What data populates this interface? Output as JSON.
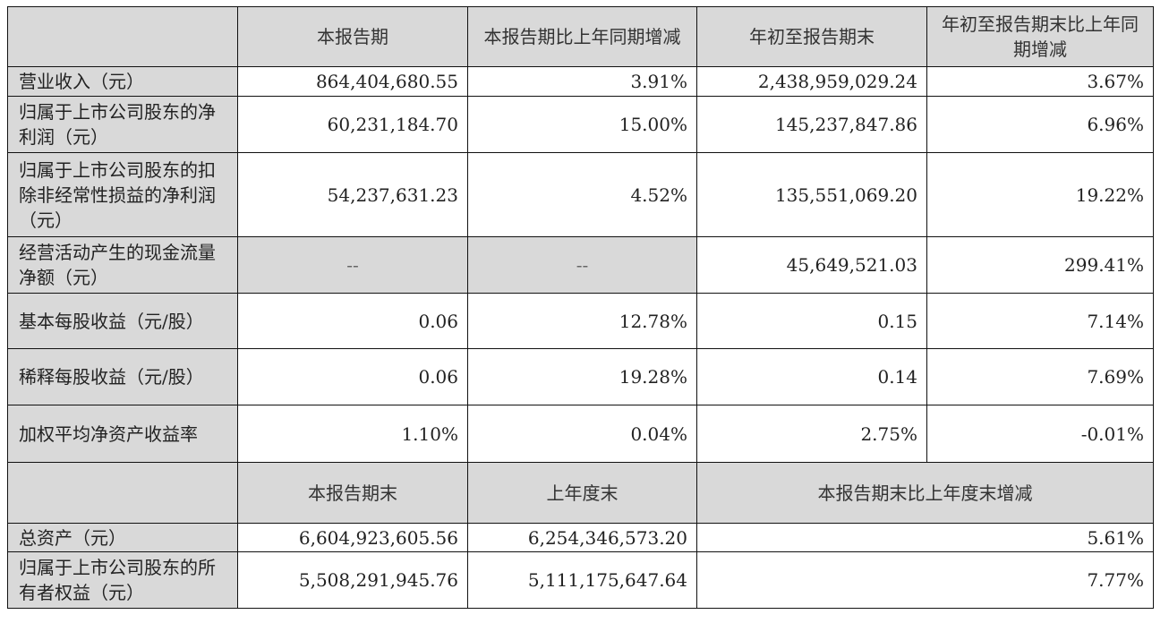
{
  "header": {
    "blank": "",
    "col1": "本报告期",
    "col2": "本报告期比上年同期增减",
    "col3": "年初至报告期末",
    "col4": "年初至报告期末比上年同期增减"
  },
  "rows": [
    {
      "label": "营业收入（元）",
      "v1": "864,404,680.55",
      "v2": "3.91%",
      "v3": "2,438,959,029.24",
      "v4": "3.67%"
    },
    {
      "label": "归属于上市公司股东的净利润（元）",
      "v1": "60,231,184.70",
      "v2": "15.00%",
      "v3": "145,237,847.86",
      "v4": "6.96%"
    },
    {
      "label": "归属于上市公司股东的扣除非经常性损益的净利润（元）",
      "v1": "54,237,631.23",
      "v2": "4.52%",
      "v3": "135,551,069.20",
      "v4": "19.22%"
    },
    {
      "label": "经营活动产生的现金流量净额（元）",
      "v1": "--",
      "v2": "--",
      "v3": "45,649,521.03",
      "v4": "299.41%"
    },
    {
      "label": "基本每股收益（元/股）",
      "v1": "0.06",
      "v2": "12.78%",
      "v3": "0.15",
      "v4": "7.14%"
    },
    {
      "label": "稀释每股收益（元/股）",
      "v1": "0.06",
      "v2": "19.28%",
      "v3": "0.14",
      "v4": "7.69%"
    },
    {
      "label": "加权平均净资产收益率",
      "v1": "1.10%",
      "v2": "0.04%",
      "v3": "2.75%",
      "v4": "-0.01%"
    }
  ],
  "header2": {
    "col1": "本报告期末",
    "col2": "上年度末",
    "col3": "本报告期末比上年度末增减"
  },
  "rows2": [
    {
      "label": "总资产（元）",
      "v1": "6,604,923,605.56",
      "v2": "6,254,346,573.20",
      "v3": "5.61%"
    },
    {
      "label": "归属于上市公司股东的所有者权益（元）",
      "v1": "5,508,291,945.76",
      "v2": "5,111,175,647.64",
      "v3": "7.77%"
    }
  ],
  "colors": {
    "header_bg": "#d9d9d9",
    "border": "#111111"
  }
}
